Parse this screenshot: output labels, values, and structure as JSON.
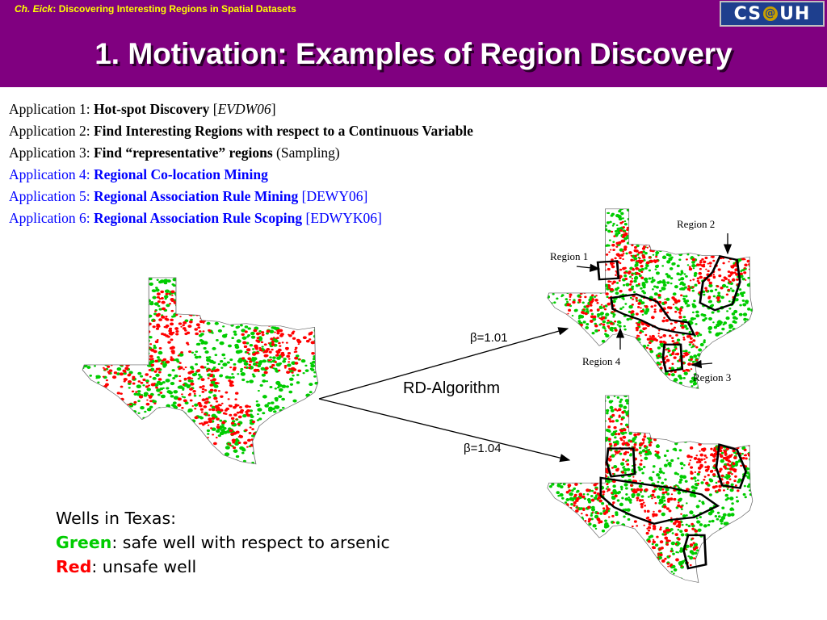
{
  "header": {
    "author": "Ch. Eick",
    "course": ": Discovering Interesting Regions in Spatial Datasets",
    "logo": {
      "left": "CS",
      "at": "@",
      "right": "UH"
    },
    "title": "1. Motivation: Examples of Region Discovery",
    "background_color": "#800080",
    "subtitle_color": "#ffff00"
  },
  "applications": [
    {
      "prefix": "Application 1: ",
      "name": "Hot-spot Discovery",
      "ref_open": " [",
      "ref": "EVDW06",
      "ref_close": "]",
      "color": "#000000"
    },
    {
      "prefix": "Application 2: ",
      "name": "Find Interesting Regions with respect to a Continuous Variable",
      "color": "#000000"
    },
    {
      "prefix": "Application 3: ",
      "name": "Find “representative” regions",
      "suffix": " (Sampling)",
      "color": "#000000"
    },
    {
      "prefix": "Application 4: ",
      "name": "Regional Co-location Mining",
      "color": "#0000ff"
    },
    {
      "prefix": "Application 5: ",
      "name": "Regional Association Rule Mining",
      "suffix": " [DEWY06]",
      "color": "#0000ff"
    },
    {
      "prefix": "Application 6: ",
      "name": "Regional Association Rule Scoping",
      "suffix": " [EDWYK06]",
      "color": "#0000ff"
    }
  ],
  "diagram": {
    "algorithm": "RD-Algorithm",
    "beta_top": "β=1.01",
    "beta_bottom": "β=1.04",
    "regions": [
      "Region 1",
      "Region 2",
      "Region 3",
      "Region 4"
    ]
  },
  "legend": {
    "title": "Wells in Texas:",
    "green_word": "Green",
    "green_text": ": safe well with respect to arsenic",
    "red_word": "Red",
    "red_text": ": unsafe well",
    "green_color": "#00cc00",
    "red_color": "#ff0000"
  }
}
